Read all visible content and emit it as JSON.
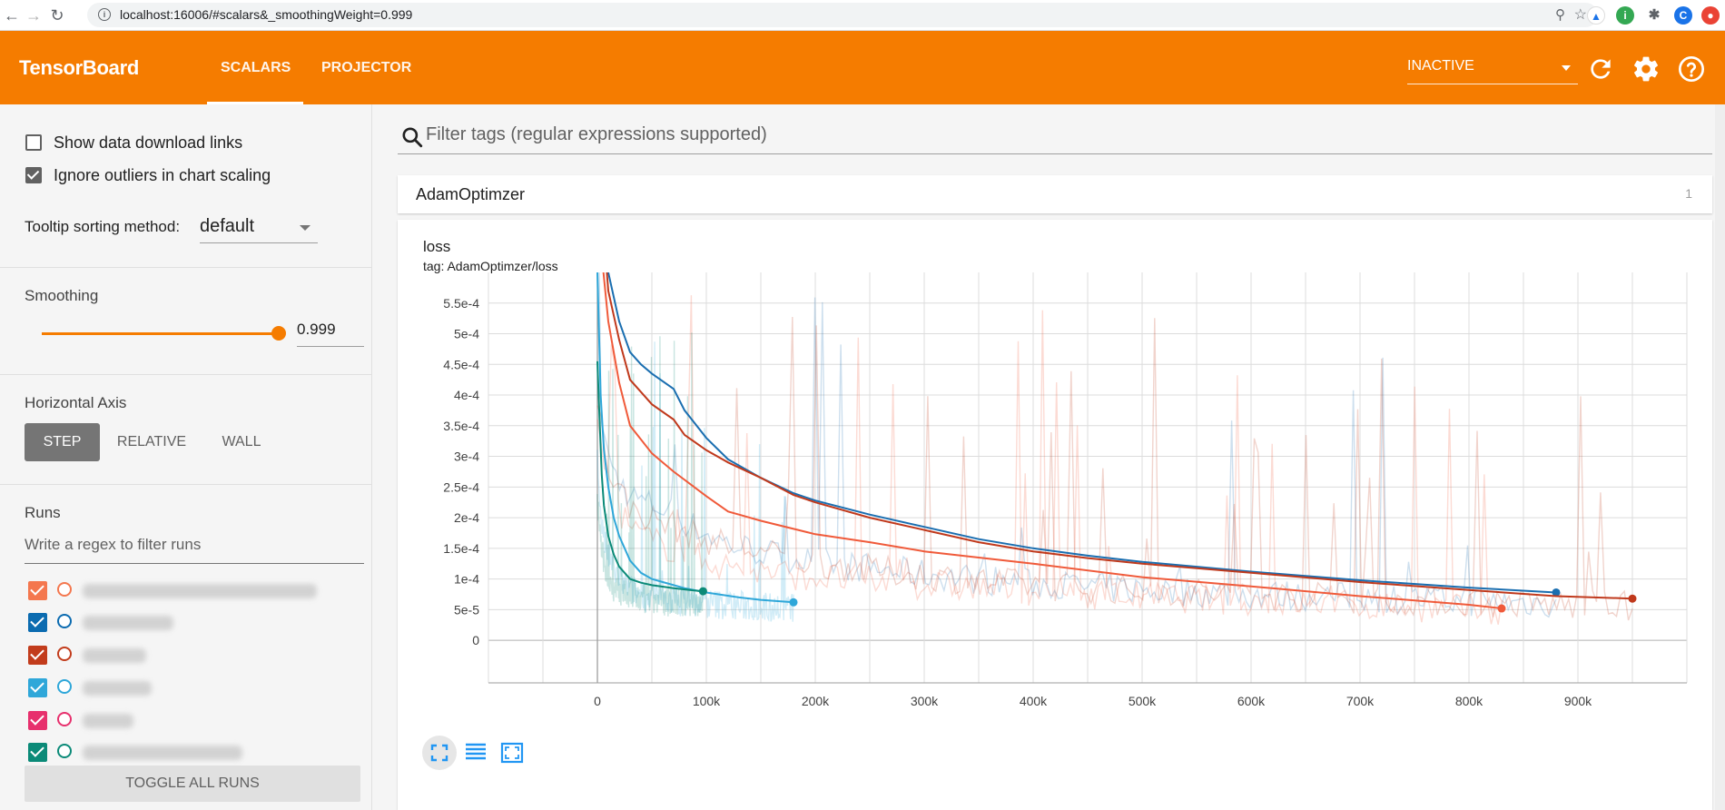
{
  "browser": {
    "url": "localhost:16006/#scalars&_smoothingWeight=0.999",
    "icons": [
      "back-arrow-icon",
      "forward-arrow-icon",
      "reload-icon",
      "info-icon",
      "zoom-icon",
      "star-icon",
      "extension-icon",
      "profile-icon"
    ],
    "profile_initial": "C"
  },
  "header": {
    "title": "TensorBoard",
    "tabs": [
      {
        "label": "SCALARS",
        "active": true
      },
      {
        "label": "PROJECTOR",
        "active": false
      }
    ],
    "run_status": "INACTIVE",
    "icons": [
      "refresh-icon",
      "settings-icon",
      "help-icon"
    ],
    "color": "#f57c00"
  },
  "sidebar": {
    "show_download_links": {
      "label": "Show data download links",
      "checked": false
    },
    "ignore_outliers": {
      "label": "Ignore outliers in chart scaling",
      "checked": true
    },
    "tooltip_sorting": {
      "label": "Tooltip sorting method:",
      "value": "default"
    },
    "smoothing": {
      "title": "Smoothing",
      "value": "0.999",
      "fraction": 0.999
    },
    "horizontal_axis": {
      "title": "Horizontal Axis",
      "options": [
        "STEP",
        "RELATIVE",
        "WALL"
      ],
      "selected": "STEP"
    },
    "runs": {
      "title": "Runs",
      "filter_placeholder": "Write a regex to filter runs",
      "items": [
        {
          "color": "#f4774e",
          "checked": true
        },
        {
          "color": "#0b6bb0",
          "checked": true
        },
        {
          "color": "#c23c1c",
          "checked": true
        },
        {
          "color": "#2fa7d9",
          "checked": true
        },
        {
          "color": "#e7306d",
          "checked": true
        },
        {
          "color": "#0b8a78",
          "checked": true
        }
      ],
      "toggle_all_label": "TOGGLE ALL RUNS"
    }
  },
  "main": {
    "filter_placeholder": "Filter tags (regular expressions supported)",
    "group": {
      "name": "AdamOptimzer",
      "count": "1"
    },
    "chart": {
      "title": "loss",
      "tag": "tag: AdamOptimzer/loss",
      "tools": [
        "fit-domain-icon",
        "toggle-log-scale-icon",
        "reset-zoom-icon"
      ]
    }
  },
  "chart_data": {
    "type": "line",
    "title": "loss",
    "xlabel": "",
    "ylabel": "",
    "x_ticks": [
      "0",
      "100k",
      "200k",
      "300k",
      "400k",
      "500k",
      "600k",
      "700k",
      "800k",
      "900k"
    ],
    "y_ticks": [
      "0",
      "5e-5",
      "1e-4",
      "1.5e-4",
      "2e-4",
      "2.5e-4",
      "3e-4",
      "3.5e-4",
      "4e-4",
      "4.5e-4",
      "5e-4",
      "5.5e-4"
    ],
    "xlim": [
      -100000,
      1000000
    ],
    "ylim": [
      -2.5e-05,
      0.0006
    ],
    "grid": true,
    "series": [
      {
        "color": "#1a6eb0",
        "x": [
          0,
          10000,
          20000,
          30000,
          40000,
          50000,
          70000,
          80000,
          100000,
          120000,
          150000,
          180000,
          200000,
          250000,
          300000,
          350000,
          400000,
          450000,
          500000,
          600000,
          700000,
          800000,
          880000
        ],
        "y": [
          0.00085,
          0.0006,
          0.00052,
          0.00047,
          0.00045,
          0.000435,
          0.00041,
          0.000375,
          0.00033,
          0.000295,
          0.000265,
          0.00024,
          0.000228,
          0.000205,
          0.000185,
          0.000165,
          0.00015,
          0.000138,
          0.000128,
          0.000112,
          9.8e-05,
          8.6e-05,
          7.8e-05
        ]
      },
      {
        "color": "#c0391c",
        "x": [
          0,
          10000,
          20000,
          30000,
          40000,
          50000,
          70000,
          80000,
          100000,
          120000,
          150000,
          180000,
          200000,
          250000,
          300000,
          350000,
          400000,
          450000,
          500000,
          600000,
          700000,
          800000,
          880000,
          950000
        ],
        "y": [
          0.0008,
          0.00057,
          0.00049,
          0.000425,
          0.000405,
          0.000385,
          0.00036,
          0.000335,
          0.00031,
          0.00029,
          0.000265,
          0.000237,
          0.000225,
          0.0002,
          0.00018,
          0.00016,
          0.000145,
          0.000134,
          0.000125,
          0.00011,
          9.5e-05,
          8.2e-05,
          7.2e-05,
          6.8e-05
        ]
      },
      {
        "color": "#f05a3a",
        "x": [
          0,
          10000,
          20000,
          30000,
          50000,
          70000,
          100000,
          120000,
          130000,
          150000,
          200000,
          250000,
          300000,
          400000,
          500000,
          600000,
          700000,
          800000,
          830000
        ],
        "y": [
          0.0007,
          0.00052,
          0.00042,
          0.00035,
          0.000305,
          0.000275,
          0.000235,
          0.00021,
          0.000205,
          0.000195,
          0.000173,
          0.00016,
          0.000145,
          0.000125,
          0.000103,
          8.8e-05,
          7.2e-05,
          5.8e-05,
          5.2e-05
        ]
      },
      {
        "color": "#2fa7d9",
        "x": [
          0,
          3000,
          6000,
          10000,
          15000,
          20000,
          30000,
          40000,
          50000,
          60000,
          80000,
          100000,
          130000,
          150000,
          180000
        ],
        "y": [
          0.0006,
          0.0004,
          0.00031,
          0.00025,
          0.0002,
          0.00017,
          0.00013,
          0.00011,
          0.0001,
          9.5e-05,
          8.5e-05,
          7.8e-05,
          7e-05,
          6.6e-05,
          6.2e-05
        ]
      },
      {
        "color": "#0b8a78",
        "x": [
          0,
          2000,
          4000,
          6000,
          10000,
          15000,
          20000,
          30000,
          40000,
          50000,
          70000,
          90000,
          97000
        ],
        "y": [
          0.000455,
          0.00036,
          0.00027,
          0.00022,
          0.00017,
          0.00014,
          0.00012,
          0.0001,
          9.4e-05,
          9e-05,
          8.5e-05,
          8.1e-05,
          8e-05
        ]
      }
    ]
  }
}
